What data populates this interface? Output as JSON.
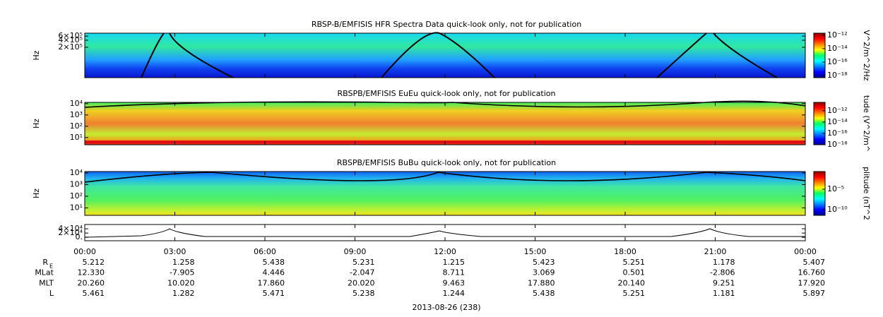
{
  "chart_data": [
    {
      "type": "spectrogram",
      "title": "RBSP-B/EMFISIS  HFR Spectra Data quick-look only, not for publication",
      "ylabel": "Hz",
      "log": true,
      "ylim": [
        10000,
        800000
      ],
      "yticks": [
        {
          "value": 600000,
          "label": "6×10⁵"
        },
        {
          "value": 400000,
          "label": "4×10⁵"
        },
        {
          "value": 200000,
          "label": "2×10⁵"
        }
      ],
      "xlim": [
        0,
        24
      ],
      "xticks": [
        {
          "value": 0,
          "label": "00:00"
        },
        {
          "value": 3,
          "label": "03:00"
        },
        {
          "value": 6,
          "label": "06:00"
        },
        {
          "value": 9,
          "label": "09:00"
        },
        {
          "value": 12,
          "label": "12:00"
        },
        {
          "value": 15,
          "label": "15:00"
        },
        {
          "value": 18,
          "label": "18:00"
        },
        {
          "value": 21,
          "label": "21:00"
        },
        {
          "value": 24,
          "label": "00:00"
        }
      ],
      "colorbar": {
        "label": "V^2/m^2/Hz",
        "clim": [
          5e-19,
          2e-12
        ],
        "ticks": [
          {
            "value": 1e-12,
            "label": "10⁻¹²"
          },
          {
            "value": 1e-14,
            "label": "10⁻¹⁴"
          },
          {
            "value": 1e-16,
            "label": "10⁻¹⁶"
          },
          {
            "value": 1e-18,
            "label": "10⁻¹⁸"
          }
        ]
      }
    },
    {
      "type": "spectrogram",
      "title": "RBSPB/EMFISIS  EuEu quick-look only, not for publication",
      "ylabel": "Hz",
      "log": true,
      "ylim": [
        2.3,
        13000
      ],
      "yticks": [
        {
          "value": 10000,
          "label": "10⁴"
        },
        {
          "value": 1000,
          "label": "10³"
        },
        {
          "value": 100,
          "label": "10²"
        },
        {
          "value": 10,
          "label": "10¹"
        }
      ],
      "xlim": [
        0,
        24
      ],
      "xticks": [
        {
          "value": 0,
          "label": "00:00"
        },
        {
          "value": 3,
          "label": "03:00"
        },
        {
          "value": 6,
          "label": "06:00"
        },
        {
          "value": 9,
          "label": "09:00"
        },
        {
          "value": 12,
          "label": "12:00"
        },
        {
          "value": 15,
          "label": "15:00"
        },
        {
          "value": 18,
          "label": "18:00"
        },
        {
          "value": 21,
          "label": "21:00"
        },
        {
          "value": 24,
          "label": "00:00"
        }
      ],
      "colorbar": {
        "label": "tude (V^2/m^",
        "clim": [
          1e-18,
          3e-11
        ],
        "ticks": [
          {
            "value": 1e-12,
            "label": "10⁻¹²"
          },
          {
            "value": 1e-14,
            "label": "10⁻¹⁴"
          },
          {
            "value": 1e-16,
            "label": "10⁻¹⁶"
          },
          {
            "value": 1e-18,
            "label": "10⁻¹⁸"
          }
        ]
      }
    },
    {
      "type": "spectrogram",
      "title": "RBSPB/EMFISIS  BuBu quick-look only, not for publication",
      "ylabel": "Hz",
      "log": true,
      "ylim": [
        2.3,
        13000
      ],
      "yticks": [
        {
          "value": 10000,
          "label": "10⁴"
        },
        {
          "value": 1000,
          "label": "10³"
        },
        {
          "value": 100,
          "label": "10²"
        },
        {
          "value": 10,
          "label": "10¹"
        }
      ],
      "xlim": [
        0,
        24
      ],
      "xticks": [
        {
          "value": 0,
          "label": "00:00"
        },
        {
          "value": 3,
          "label": "03:00"
        },
        {
          "value": 6,
          "label": "06:00"
        },
        {
          "value": 9,
          "label": "09:00"
        },
        {
          "value": 12,
          "label": "12:00"
        },
        {
          "value": 15,
          "label": "15:00"
        },
        {
          "value": 18,
          "label": "18:00"
        },
        {
          "value": 21,
          "label": "21:00"
        },
        {
          "value": 24,
          "label": "00:00"
        }
      ],
      "colorbar": {
        "label": "plitude (nT^2",
        "clim": [
          4e-12,
          0.2
        ],
        "ticks": [
          {
            "value": 1e-05,
            "label": "10⁻⁵"
          },
          {
            "value": 1e-10,
            "label": "10⁻¹⁰"
          }
        ]
      }
    },
    {
      "type": "line",
      "log": false,
      "ylim": [
        -16000,
        60000
      ],
      "yticks": [
        {
          "value": 40000,
          "label": "4×10⁴"
        },
        {
          "value": 20000,
          "label": "2×10⁴"
        },
        {
          "value": 0,
          "label": "0."
        }
      ],
      "xlim": [
        0,
        24
      ],
      "xticks": [
        {
          "value": 0,
          "label": "00:00"
        },
        {
          "value": 3,
          "label": "03:00"
        },
        {
          "value": 6,
          "label": "06:00"
        },
        {
          "value": 9,
          "label": "09:00"
        },
        {
          "value": 12,
          "label": "12:00"
        },
        {
          "value": 15,
          "label": "15:00"
        },
        {
          "value": 18,
          "label": "18:00"
        },
        {
          "value": 21,
          "label": "21:00"
        },
        {
          "value": 24,
          "label": "00:00"
        }
      ]
    }
  ],
  "ephemeris": {
    "rows": [
      {
        "label": "R",
        "sub": "E",
        "values": [
          "5.212",
          "1.258",
          "5.438",
          "5.231",
          "1.215",
          "5.423",
          "5.251",
          "1.178",
          "5.407"
        ]
      },
      {
        "label": "MLat",
        "values": [
          "12.330",
          "-7.905",
          "4.446",
          "-2.047",
          "8.711",
          "3.069",
          "0.501",
          "-2.806",
          "16.760"
        ]
      },
      {
        "label": "MLT",
        "values": [
          "20.260",
          "10.020",
          "17.860",
          "20.020",
          "9.463",
          "17.880",
          "20.140",
          "9.251",
          "17.920"
        ]
      },
      {
        "label": "L",
        "values": [
          "5.461",
          "1.282",
          "5.471",
          "5.238",
          "1.244",
          "5.438",
          "5.251",
          "1.181",
          "5.897"
        ]
      }
    ]
  },
  "date": "2013-08-26 (238)"
}
